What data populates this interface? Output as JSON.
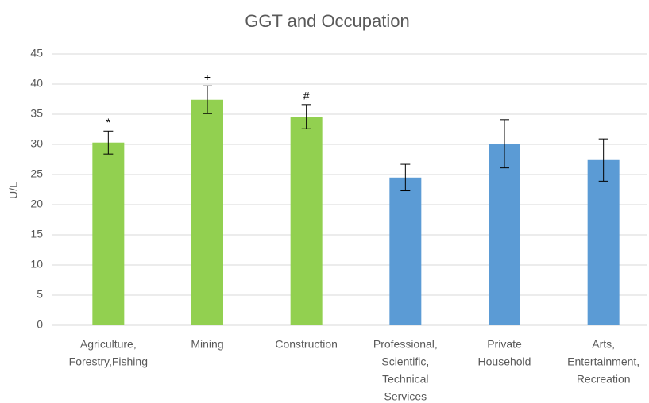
{
  "chart_data": {
    "type": "bar",
    "title": "GGT and Occupation",
    "y_label": "U/L",
    "categories": [
      [
        "Agriculture,",
        "Forestry,Fishing"
      ],
      [
        "Mining"
      ],
      [
        "Construction"
      ],
      [
        "Professional,",
        "Scientific,",
        "Technical",
        "Services"
      ],
      [
        "Private",
        "Household"
      ],
      [
        "Arts,",
        "Entertainment,",
        "Recreation"
      ]
    ],
    "values": [
      30.3,
      37.4,
      34.6,
      24.5,
      30.1,
      27.4
    ],
    "errors": [
      1.9,
      2.3,
      2.0,
      2.2,
      4.0,
      3.5
    ],
    "colors": [
      "#92d050",
      "#92d050",
      "#92d050",
      "#5b9bd5",
      "#5b9bd5",
      "#5b9bd5"
    ],
    "annotations": [
      "*",
      "+",
      "#",
      null,
      null,
      null
    ],
    "ylim": [
      0,
      45
    ],
    "yticks": [
      0,
      5,
      10,
      15,
      20,
      25,
      30,
      35,
      40,
      45
    ],
    "grid": true
  }
}
